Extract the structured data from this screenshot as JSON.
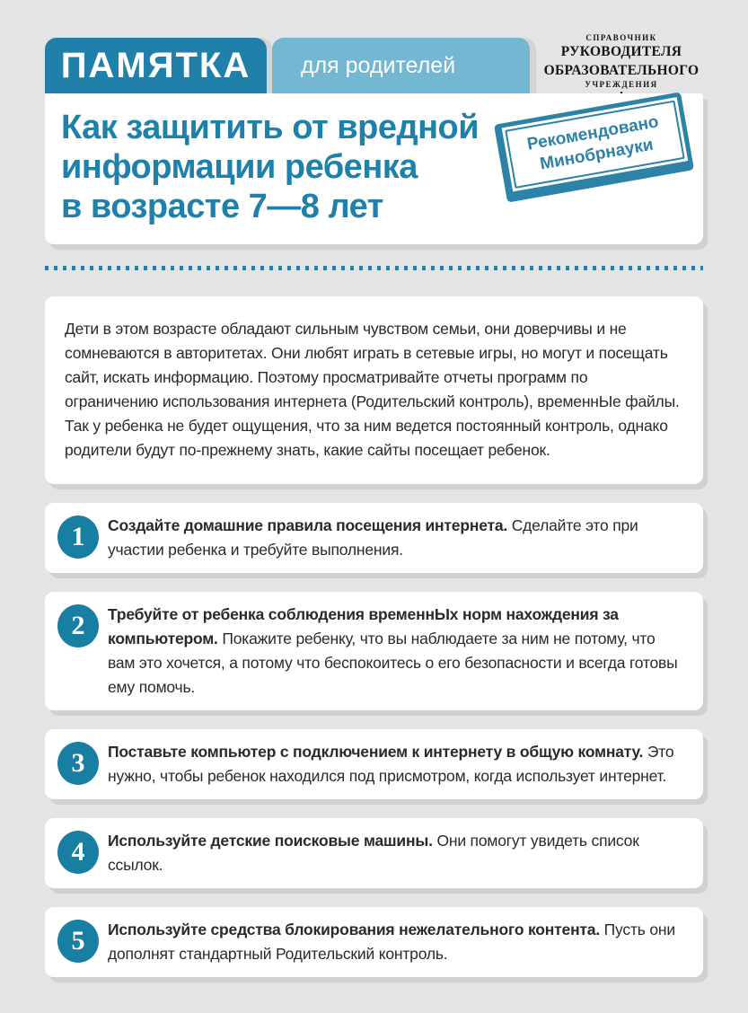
{
  "colors": {
    "background": "#e4e4e4",
    "teal_dark": "#2180a9",
    "teal_light": "#74b7d3",
    "title_text": "#1f81aa",
    "stamp": "#2d82a8",
    "number_circle": "#197fa2",
    "card_shadow": "#ced2d4"
  },
  "header": {
    "badge": "ПАМЯТКА",
    "audience": "для родителей",
    "logo_lines": [
      "СПРАВОЧНИК",
      "РУКОВОДИТЕЛЯ",
      "ОБРАЗОВАТЕЛЬНОГО",
      "УЧРЕЖДЕНИЯ"
    ],
    "logo_dot": "•"
  },
  "title": {
    "lines": [
      "Как защитить от вредной",
      "информации ребенка",
      "в возрасте 7—8 лет"
    ]
  },
  "stamp": {
    "lines": [
      "Рекомендовано",
      "Минобрнауки"
    ]
  },
  "intro": {
    "text": "Дети в этом возрасте обладают сильным чувством семьи, они доверчивы и не сомневаются в авторитетах. Они любят играть в сетевые игры, но могут и посещать сайт, искать информацию. Поэтому просматривайте отчеты программ по ограничению использования интернета (Родительский контроль), временнЫе файлы. Так у ребенка не будет ощущения, что за ним ведется постоянный контроль, однако родители будут по-прежнему знать, какие сайты посещает ребенок."
  },
  "items": [
    {
      "num": "1",
      "bold": "Создайте домашние правила посещения интернета.",
      "text": "Сделайте это при участии ребенка и требуйте выполнения."
    },
    {
      "num": "2",
      "bold": "Требуйте от ребенка соблюдения временнЫх норм нахождения за компьютером.",
      "text": "Покажите ребенку, что вы наблюдаете за ним не потому, что вам это хочется, а потому что беспокоитесь о его безопасности и всегда готовы ему помочь."
    },
    {
      "num": "3",
      "bold": "Поставьте компьютер с подключением к интернету в общую комнату.",
      "text": "Это нужно, чтобы ребенок находился под присмотром, когда использует интернет."
    },
    {
      "num": "4",
      "bold": "Используйте детские поисковые машины.",
      "text": "Они помогут увидеть список ссылок."
    },
    {
      "num": "5",
      "bold": "Используйте средства блокирования нежелательного контента.",
      "text": "Пусть они дополнят стандартный Родительский контроль."
    }
  ]
}
